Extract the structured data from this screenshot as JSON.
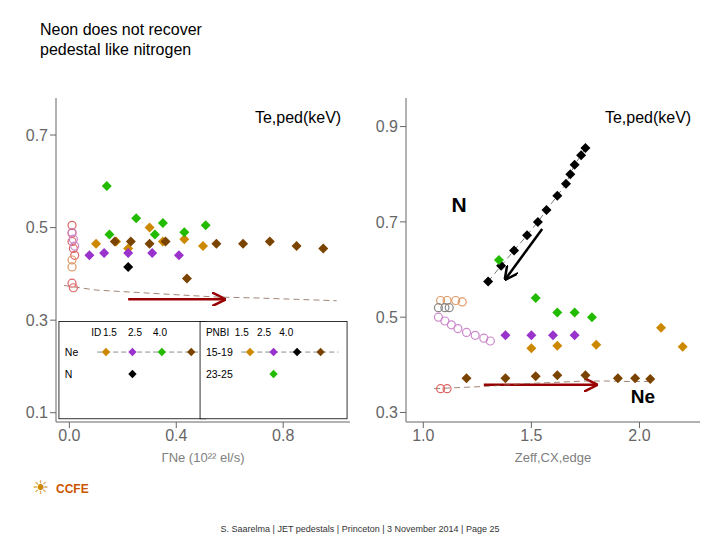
{
  "title": "Neon does not recover\npedestal like nitrogen",
  "footer": "S. Saarelma | JET pedestals | Princeton | 3 November 2014 | Page 25",
  "annotations": [
    {
      "text": "☀",
      "color": "#cc8800"
    },
    {
      "text": "CCFE",
      "color": "#cc5500"
    }
  ],
  "chart_data": [
    {
      "type": "scatter",
      "title": "Te,ped(keV)",
      "xlabel": "ΓNe (10²² el/s)",
      "xlim": [
        -0.05,
        1.05
      ],
      "xticks": [
        {
          "value": 0.0,
          "label": "0.0"
        },
        0.4,
        0.8
      ],
      "ylim": [
        0.08,
        0.78
      ],
      "yticks": [
        0.1,
        0.3,
        0.5,
        0.7
      ],
      "series": [
        {
          "type": "line",
          "line_style": "dashed",
          "color": "#886655",
          "x": [
            -0.02,
            0.1,
            0.25,
            0.4,
            0.55,
            0.7,
            0.85,
            1.0
          ],
          "values": [
            0.375,
            0.365,
            0.36,
            0.355,
            0.35,
            0.348,
            0.345,
            0.342
          ]
        },
        {
          "marker": "open_circle",
          "color": "#dd6666",
          "x": [
            0.01,
            0.01,
            0.01,
            0.015,
            0.02
          ],
          "values": [
            0.505,
            0.488,
            0.47,
            0.455,
            0.44
          ]
        },
        {
          "marker": "open_circle",
          "color": "#dd9966",
          "x": [
            0.01,
            0.01
          ],
          "values": [
            0.43,
            0.415
          ]
        },
        {
          "marker": "open_circle",
          "color": "#cc88cc",
          "x": [
            0.01,
            0.015,
            0.02
          ],
          "values": [
            0.49,
            0.475,
            0.46
          ]
        },
        {
          "marker": "open_circle",
          "color": "#dd6666",
          "x": [
            0.01,
            0.015
          ],
          "values": [
            0.38,
            0.37
          ]
        },
        {
          "marker": "diamond",
          "color": "#cc8800",
          "x": [
            0.1,
            0.175,
            0.22,
            0.3,
            0.35,
            0.43,
            0.5
          ],
          "values": [
            0.465,
            0.47,
            0.455,
            0.5,
            0.47,
            0.475,
            0.46
          ]
        },
        {
          "marker": "diamond",
          "color": "#9933cc",
          "x": [
            0.075,
            0.13,
            0.22,
            0.31,
            0.41
          ],
          "values": [
            0.44,
            0.445,
            0.445,
            0.445,
            0.44
          ]
        },
        {
          "marker": "diamond",
          "color": "#22bb00",
          "x": [
            0.14,
            0.15,
            0.25,
            0.32,
            0.35,
            0.43,
            0.51
          ],
          "values": [
            0.59,
            0.485,
            0.52,
            0.485,
            0.51,
            0.49,
            0.505
          ]
        },
        {
          "marker": "diamond",
          "color": "#7a4400",
          "x": [
            0.17,
            0.23,
            0.3,
            0.36,
            0.44,
            0.55,
            0.65,
            0.75,
            0.85,
            0.95
          ],
          "values": [
            0.47,
            0.47,
            0.465,
            0.47,
            0.39,
            0.465,
            0.465,
            0.47,
            0.46,
            0.455
          ]
        },
        {
          "marker": "diamond",
          "color": "#000000",
          "x": [
            0.22
          ],
          "values": [
            0.415
          ]
        }
      ],
      "annotations": [
        {
          "arrow": [
            [
              0.22,
              0.345
            ],
            [
              0.58,
              0.345
            ]
          ],
          "color": "#990000"
        },
        {
          "box": [
            {
              "texts": [
                "ID",
                "1.5    2.5    4.0"
              ]
            },
            {
              "text": "Ne",
              "colors": [
                "#cc8800",
                "#9933cc",
                "#22bb00",
                "#7a4400"
              ],
              "line_style": "dashed"
            },
            {
              "text": "N",
              "colors": [
                "#000000"
              ]
            }
          ]
        },
        {
          "box": [
            {
              "texts": [
                "PNBI  1.5   2.5   4.0"
              ]
            },
            {
              "text": "15-19",
              "colors": [
                "#cc8800",
                "#9933cc",
                "#000000",
                "#7a4400"
              ],
              "line_style": "dashed"
            },
            {
              "text": "23-25",
              "colors": [
                "#22bb00"
              ]
            }
          ]
        }
      ]
    },
    {
      "type": "scatter",
      "title": "Te,ped(keV)",
      "xlabel": "Zeff,CX,edge",
      "xlim": [
        0.92,
        2.28
      ],
      "xticks": [
        {
          "value": 1.0,
          "label": "1.0"
        },
        1.5,
        {
          "value": 2.0,
          "label": "2.0"
        }
      ],
      "ylim": [
        0.28,
        0.96
      ],
      "yticks": [
        0.3,
        0.5,
        0.7,
        0.9
      ],
      "series": [
        {
          "type": "line",
          "line_style": "dashed",
          "color": "#886655",
          "x": [
            1.05,
            1.15,
            1.3,
            1.45,
            1.55,
            1.65,
            1.75,
            1.85,
            1.95,
            2.05
          ],
          "values": [
            0.35,
            0.352,
            0.355,
            0.36,
            0.362,
            0.364,
            0.366,
            0.366,
            0.365,
            0.365
          ]
        },
        {
          "type": "line",
          "line_style": "dashed",
          "color": "#555555",
          "x": [
            1.3,
            1.36,
            1.42,
            1.48,
            1.53,
            1.57,
            1.62,
            1.66,
            1.68,
            1.7,
            1.73,
            1.75
          ],
          "values": [
            0.575,
            0.608,
            0.64,
            0.672,
            0.7,
            0.725,
            0.755,
            0.78,
            0.8,
            0.82,
            0.84,
            0.855
          ]
        },
        {
          "marker": "open_circle",
          "color": "#dd9966",
          "x": [
            1.08,
            1.11,
            1.15,
            1.18
          ],
          "values": [
            0.535,
            0.535,
            0.535,
            0.532
          ]
        },
        {
          "marker": "open_circle",
          "color": "#888888",
          "x": [
            1.07,
            1.1,
            1.12
          ],
          "values": [
            0.52,
            0.52,
            0.52
          ]
        },
        {
          "marker": "open_circle",
          "color": "#cc88cc",
          "x": [
            1.07,
            1.1,
            1.13,
            1.16,
            1.2,
            1.24,
            1.28,
            1.31
          ],
          "values": [
            0.5,
            0.492,
            0.484,
            0.476,
            0.468,
            0.462,
            0.456,
            0.45
          ]
        },
        {
          "marker": "open_circle",
          "color": "#dd6666",
          "x": [
            1.08,
            1.11
          ],
          "values": [
            0.35,
            0.35
          ]
        },
        {
          "marker": "diamond",
          "color": "#000000",
          "x": [
            1.3,
            1.36,
            1.42,
            1.48,
            1.53,
            1.57,
            1.62,
            1.66,
            1.68,
            1.7,
            1.73,
            1.75
          ],
          "values": [
            0.575,
            0.608,
            0.64,
            0.672,
            0.7,
            0.725,
            0.755,
            0.78,
            0.8,
            0.82,
            0.84,
            0.855
          ]
        },
        {
          "marker": "diamond",
          "color": "#22bb00",
          "x": [
            1.35,
            1.52,
            1.62,
            1.7,
            1.78
          ],
          "values": [
            0.62,
            0.54,
            0.51,
            0.51,
            0.5
          ]
        },
        {
          "marker": "diamond",
          "color": "#9933cc",
          "x": [
            1.38,
            1.5,
            1.6,
            1.7
          ],
          "values": [
            0.462,
            0.462,
            0.462,
            0.462
          ]
        },
        {
          "marker": "diamond",
          "color": "#cc8800",
          "x": [
            1.5,
            1.62,
            1.8,
            2.1,
            2.2
          ],
          "values": [
            0.435,
            0.44,
            0.442,
            0.478,
            0.438
          ]
        },
        {
          "marker": "diamond",
          "color": "#7a4400",
          "x": [
            1.2,
            1.38,
            1.52,
            1.62,
            1.75,
            1.9,
            1.98,
            2.05
          ],
          "values": [
            0.372,
            0.372,
            0.376,
            0.378,
            0.378,
            0.372,
            0.372,
            0.37
          ]
        }
      ],
      "annotations": [
        {
          "arrow": [
            [
              1.28,
              0.358
            ],
            [
              1.8,
              0.358
            ]
          ],
          "color": "#990000"
        },
        {
          "arrow": [
            [
              1.55,
              0.685
            ],
            [
              1.38,
              0.58
            ]
          ],
          "color": "#000000"
        },
        {
          "text": "N",
          "x": 1.13,
          "y": 0.72
        },
        {
          "text": "Ne",
          "x": 1.96,
          "y": 0.32
        }
      ]
    }
  ]
}
